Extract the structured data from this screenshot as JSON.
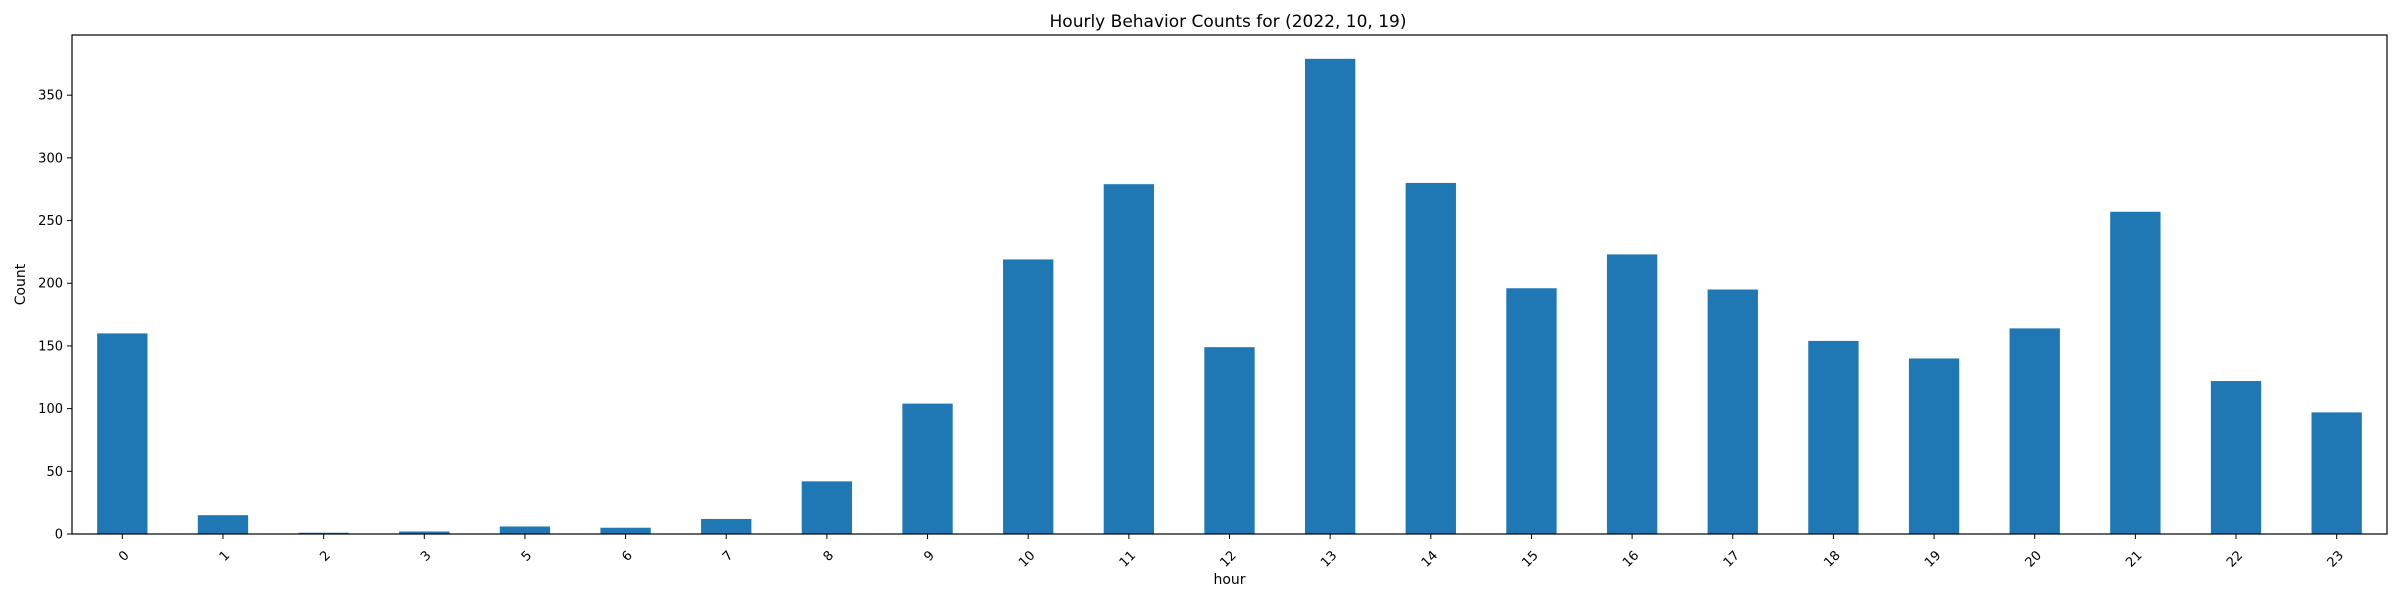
{
  "chart_data": {
    "type": "bar",
    "title": "Hourly Behavior Counts for (2022, 10, 19)",
    "xlabel": "hour",
    "ylabel": "Count",
    "categories": [
      "0",
      "1",
      "2",
      "3",
      "5",
      "6",
      "7",
      "8",
      "9",
      "10",
      "11",
      "12",
      "13",
      "14",
      "15",
      "16",
      "17",
      "18",
      "19",
      "20",
      "21",
      "22",
      "23"
    ],
    "values": [
      160,
      15,
      1,
      2,
      6,
      5,
      12,
      42,
      104,
      219,
      279,
      149,
      379,
      280,
      196,
      223,
      195,
      154,
      140,
      164,
      257,
      122,
      97
    ],
    "ylim": [
      0,
      398
    ],
    "yticks": [
      0,
      50,
      100,
      150,
      200,
      250,
      300,
      350
    ],
    "xtick_rotation": 45,
    "grid": false,
    "bar_color": "#1f77b4"
  }
}
